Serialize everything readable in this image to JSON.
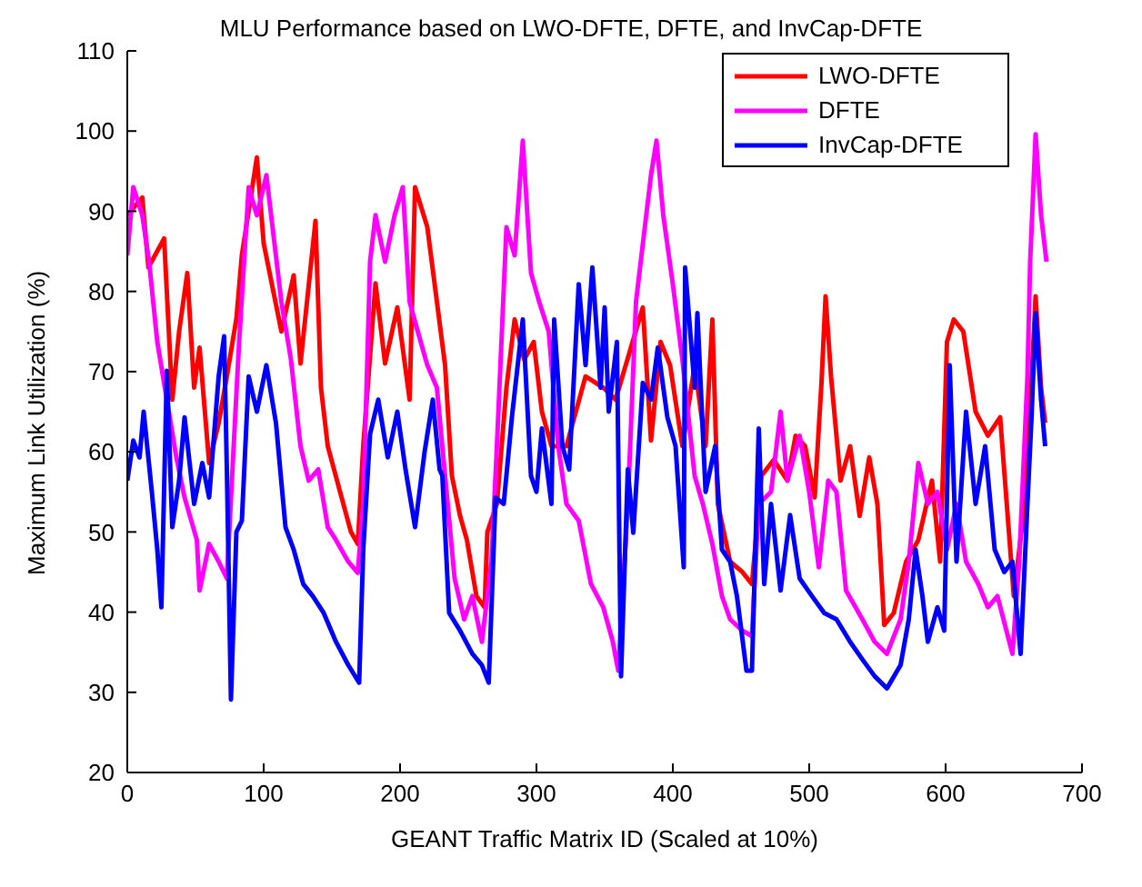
{
  "chart_data": {
    "type": "line",
    "title": "MLU Performance based on LWO-DFTE, DFTE, and InvCap-DFTE",
    "xlabel": "GEANT Traffic Matrix ID (Scaled at 10%)",
    "ylabel": "Maximum Link Utilization (%)",
    "xlim": [
      0,
      700
    ],
    "xticks": [
      0,
      100,
      200,
      300,
      400,
      500,
      600,
      700
    ],
    "ylim": [
      20,
      110
    ],
    "yticks": [
      20,
      30,
      40,
      50,
      60,
      70,
      80,
      90,
      100,
      110
    ],
    "grid": false,
    "legend": "top right",
    "marker": "none",
    "line_style": "solid",
    "series": [
      {
        "name": "LWO-DFTE",
        "color": "#ff0000",
        "x": [
          0,
          11,
          15.5,
          27,
          33,
          38,
          44,
          49,
          53,
          60,
          67,
          73,
          80,
          84,
          95,
          100,
          113,
          122,
          127,
          138,
          142,
          147,
          156,
          164,
          169,
          173,
          182,
          189,
          198,
          207,
          211,
          220,
          233,
          238,
          244,
          249,
          256,
          262,
          264,
          271,
          278,
          284,
          291,
          298,
          304,
          311,
          322,
          336,
          349,
          358,
          378,
          384,
          391,
          398,
          407,
          416,
          424,
          429,
          433,
          442,
          451,
          458,
          465,
          474,
          484,
          490,
          497,
          504,
          509,
          512,
          516,
          523,
          530,
          537,
          544,
          550,
          555,
          562,
          571,
          580,
          590,
          596,
          601,
          606,
          613,
          622,
          631,
          640,
          650,
          659,
          666,
          670,
          673
        ],
        "values": [
          89.5,
          91.7,
          83,
          86.6,
          66.5,
          75,
          82.3,
          68,
          73,
          58.6,
          63.6,
          69.4,
          76.6,
          84.5,
          96.7,
          86,
          75,
          82,
          71,
          88.8,
          68,
          60.7,
          55,
          50,
          48.5,
          60.7,
          81,
          71,
          78,
          66.5,
          93,
          88,
          70.8,
          57,
          52,
          49,
          42,
          40.6,
          50,
          53.5,
          68,
          76.5,
          71.5,
          73.7,
          65,
          60.7,
          60.7,
          69.4,
          68,
          66.5,
          78,
          61.4,
          73.7,
          70.8,
          60.7,
          70.8,
          60.7,
          76.5,
          53.5,
          46.3,
          45,
          43.5,
          57,
          59,
          56.4,
          62,
          60.7,
          54.3,
          68.6,
          79.4,
          69.4,
          56.4,
          60.7,
          52,
          59.3,
          53.5,
          38.4,
          39.9,
          46.3,
          49,
          56.4,
          46.3,
          73.7,
          76.5,
          75,
          65,
          62,
          64.3,
          42,
          55,
          79.4,
          68,
          63.6
        ]
      },
      {
        "name": "DFTE",
        "color": "#ff00ff",
        "x": [
          0,
          4.4,
          11,
          16,
          22,
          29,
          36,
          42,
          51,
          53,
          60,
          67,
          73,
          78,
          82,
          89,
          95,
          102,
          107,
          113,
          120,
          127,
          133,
          140,
          147,
          153,
          162,
          169,
          173,
          178,
          182,
          189,
          196,
          202,
          207,
          213,
          220,
          227,
          233,
          240,
          247,
          253,
          260,
          267,
          271,
          278,
          284,
          290,
          296,
          302,
          309,
          316,
          322,
          331,
          340,
          349,
          356,
          360,
          367,
          373,
          378,
          384,
          388,
          393,
          400,
          407,
          416,
          422,
          429,
          436,
          442,
          451,
          458,
          463,
          472,
          479,
          484,
          493,
          500,
          507,
          514,
          520,
          527,
          539,
          548,
          557,
          567,
          573,
          580,
          587,
          594,
          601,
          608,
          615,
          624,
          631,
          638,
          649,
          654,
          660,
          662,
          666,
          670,
          674
        ],
        "values": [
          84.5,
          93,
          89.5,
          83.7,
          73.7,
          66.5,
          59.3,
          54.3,
          49,
          42.7,
          48.5,
          46.3,
          44.2,
          60.7,
          73.7,
          93,
          89.5,
          94.5,
          87.3,
          78.7,
          71.5,
          60.7,
          56.4,
          57.8,
          50.6,
          49,
          46.3,
          44.9,
          53.5,
          83.7,
          89.5,
          83.7,
          89.5,
          93,
          78.7,
          75,
          70.8,
          68,
          57,
          44.2,
          39.1,
          42,
          36.3,
          46.3,
          60.7,
          88,
          84.5,
          98.8,
          82.3,
          78.7,
          75,
          60.7,
          53.5,
          51.4,
          43.5,
          40.6,
          36.3,
          32.7,
          53.5,
          78.7,
          85.9,
          94.5,
          98.8,
          89.5,
          80.9,
          71.5,
          57,
          53.5,
          48.5,
          42,
          39.1,
          37.7,
          37,
          53.5,
          55,
          65,
          56.4,
          62,
          55,
          45.6,
          56.4,
          55,
          42.7,
          39.1,
          36.3,
          34.8,
          39.1,
          46.3,
          58.6,
          53.5,
          55,
          47.8,
          53.5,
          46.3,
          43.5,
          40.6,
          42,
          34.8,
          46.3,
          69.4,
          83.7,
          99.6,
          89.5,
          83.7
        ]
      },
      {
        "name": "InvCap-DFTE",
        "color": "#0000ff",
        "x": [
          0,
          4.4,
          9,
          12,
          18,
          22,
          25,
          29,
          33,
          38,
          42,
          49,
          55,
          60,
          67,
          71,
          73,
          76,
          80,
          84,
          89,
          95,
          102,
          109,
          116,
          122,
          129,
          136,
          144,
          153,
          162,
          170,
          173,
          178,
          184,
          191,
          198,
          204,
          211,
          218,
          224,
          229,
          231,
          236,
          244,
          253,
          260,
          265,
          270,
          276,
          282,
          290,
          296,
          300,
          304,
          311,
          313,
          319,
          324,
          331,
          336,
          341,
          347,
          350,
          353,
          359,
          362,
          367,
          371,
          378,
          384,
          389,
          396,
          402,
          408,
          409,
          416,
          418,
          424,
          431,
          436,
          442,
          447,
          454,
          458,
          463,
          467,
          472,
          479,
          486,
          493,
          502,
          511,
          520,
          530,
          539,
          548,
          557,
          567,
          573,
          578,
          583,
          587,
          594,
          599,
          603,
          608,
          615,
          622,
          629,
          636,
          643,
          649,
          655,
          660,
          663,
          666,
          670,
          673
        ],
        "values": [
          56.4,
          61.4,
          59.3,
          65,
          55,
          47.8,
          40.6,
          70.1,
          50.6,
          56.4,
          64.3,
          53.5,
          58.6,
          54.3,
          69.4,
          74.4,
          57.8,
          29.1,
          50,
          51.4,
          69.4,
          65,
          70.8,
          63.6,
          50.6,
          47.8,
          43.5,
          42,
          39.9,
          36.3,
          33.4,
          31.2,
          47.8,
          62.2,
          66.5,
          59.3,
          65,
          57.8,
          50.6,
          60,
          66.5,
          57.8,
          57,
          39.9,
          37.7,
          34.8,
          33.4,
          31.2,
          54.3,
          53.5,
          64.3,
          76.5,
          57,
          55,
          62.9,
          53.5,
          76.5,
          60.7,
          57.8,
          80.9,
          70.8,
          83,
          68,
          78,
          65,
          73.7,
          32,
          57.8,
          49.9,
          68.6,
          66.5,
          73,
          64.3,
          60.7,
          45.6,
          83,
          68,
          77.3,
          55,
          60.7,
          47.8,
          46.3,
          42,
          32.7,
          32.7,
          62.9,
          43.5,
          53.5,
          42.7,
          52.1,
          44.2,
          42,
          39.9,
          39.1,
          36.3,
          34.1,
          32,
          30.5,
          33.4,
          39.1,
          47.8,
          42,
          36.3,
          40.6,
          37.7,
          70.8,
          46.3,
          65,
          53.5,
          60.7,
          47.8,
          45,
          46.3,
          34.8,
          53.5,
          64.3,
          77.3,
          66.5,
          60.7
        ]
      }
    ]
  }
}
